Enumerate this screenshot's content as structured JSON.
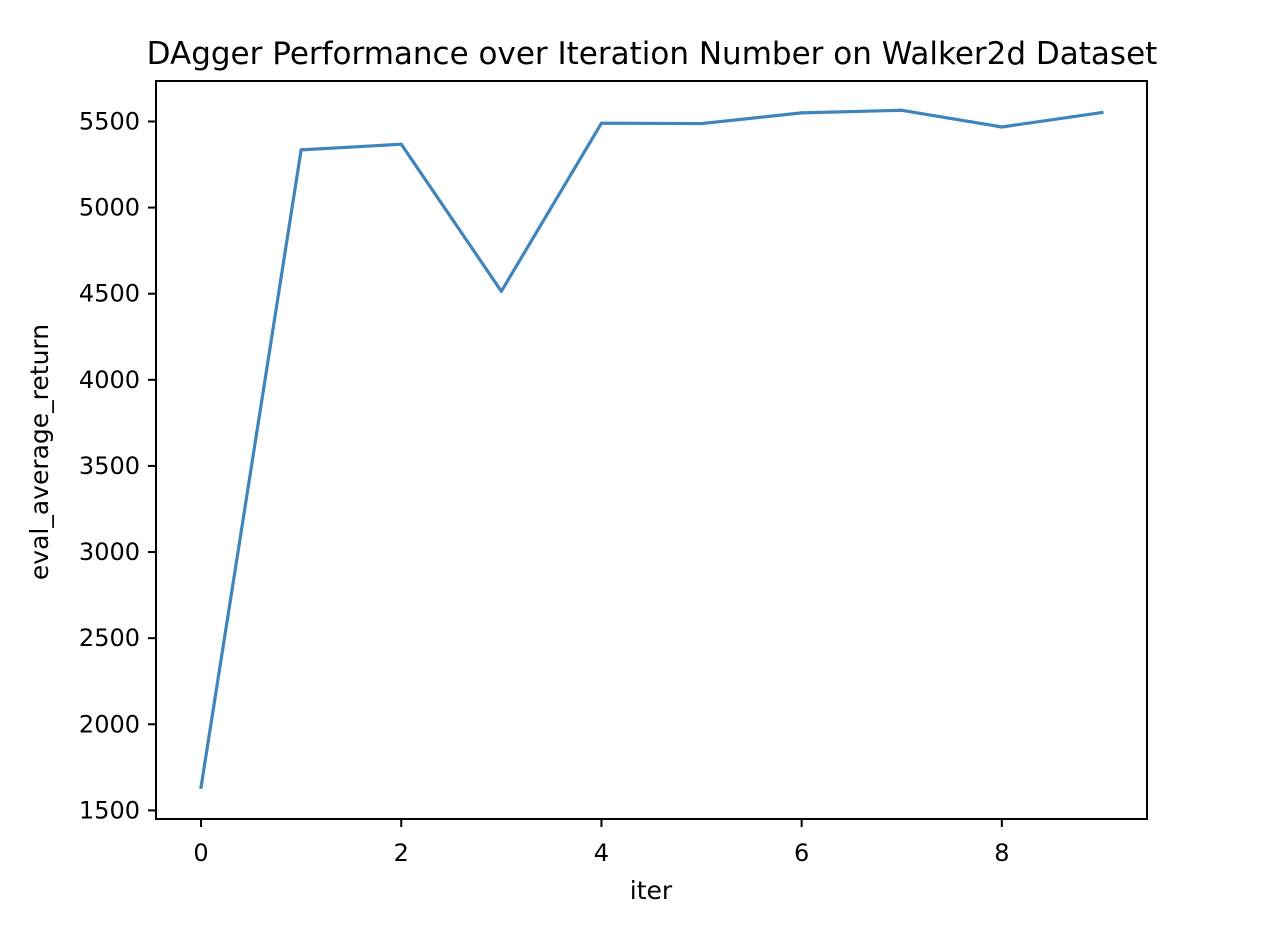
{
  "chart_data": {
    "type": "line",
    "title": "DAgger Performance over Iteration Number on Walker2d Dataset",
    "xlabel": "iter",
    "ylabel": "eval_average_return",
    "x": [
      0,
      1,
      2,
      3,
      4,
      5,
      6,
      7,
      8,
      9
    ],
    "series": [
      {
        "values": [
          1635,
          5335,
          5368,
          4514,
          5490,
          5488,
          5550,
          5565,
          5468,
          5552
        ]
      }
    ],
    "xlim": [
      -0.45,
      9.45
    ],
    "ylim": [
      1450,
      5735
    ],
    "xticks": [
      0,
      2,
      4,
      6,
      8
    ],
    "xtick_labels": [
      "0",
      "2",
      "4",
      "6",
      "8"
    ],
    "yticks": [
      1500,
      2000,
      2500,
      3000,
      3500,
      4000,
      4500,
      5000,
      5500
    ],
    "ytick_labels": [
      "1500",
      "2000",
      "2500",
      "3000",
      "3500",
      "4000",
      "4500",
      "5000",
      "5500"
    ],
    "grid": false,
    "line_color": "#3f84bb"
  }
}
